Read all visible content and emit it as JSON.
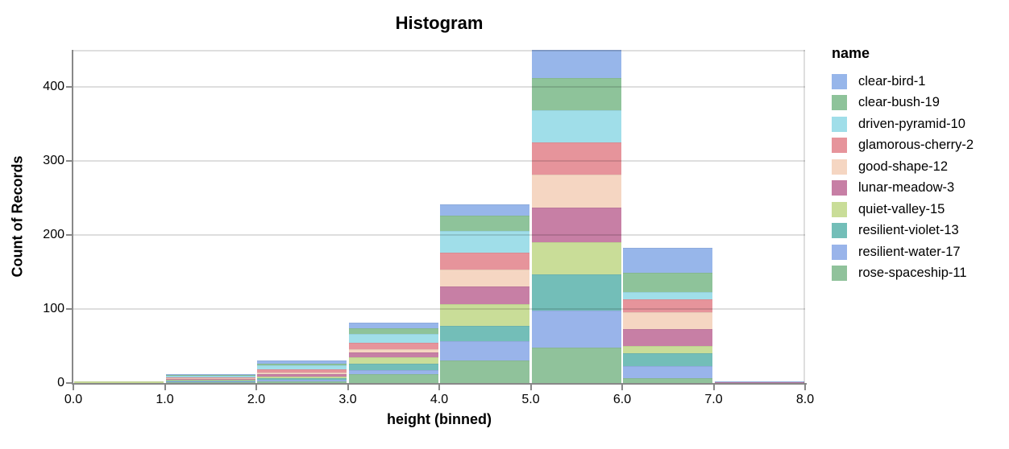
{
  "chart_data": {
    "type": "bar",
    "subtype": "stacked-histogram",
    "title": "Histogram",
    "xlabel": "height (binned)",
    "ylabel": "Count of Records",
    "legend_title": "name",
    "legend_position": "right",
    "grid": true,
    "xlim": [
      0,
      8
    ],
    "ylim": [
      0,
      450
    ],
    "bin_edges": [
      0,
      1,
      2,
      3,
      4,
      5,
      6,
      7,
      8
    ],
    "x_tick_labels": [
      "0.0",
      "1.0",
      "2.0",
      "3.0",
      "4.0",
      "5.0",
      "6.0",
      "7.0",
      "8.0"
    ],
    "y_ticks": [
      {
        "value": 0,
        "label": "0"
      },
      {
        "value": 100,
        "label": "100"
      },
      {
        "value": 200,
        "label": "200"
      },
      {
        "value": 300,
        "label": "300"
      },
      {
        "value": 400,
        "label": "400"
      }
    ],
    "bin_totals": [
      2,
      12,
      30,
      82,
      241,
      450,
      183,
      2
    ],
    "stack_note": "series listed in legend order; stacked bottom-to-top in reverse legend order (rose-spaceship-11 at bottom, clear-bird-1 on top)",
    "series": [
      {
        "name": "clear-bird-1",
        "color": "#97b6ea",
        "values": [
          0,
          1,
          4,
          8,
          15,
          38,
          34,
          1
        ]
      },
      {
        "name": "clear-bush-19",
        "color": "#8ec39a",
        "values": [
          0,
          1,
          2,
          8,
          21,
          43,
          26,
          0
        ]
      },
      {
        "name": "driven-pyramid-10",
        "color": "#a0dee9",
        "values": [
          0,
          2,
          6,
          12,
          29,
          44,
          10,
          0
        ]
      },
      {
        "name": "glamorous-cherry-2",
        "color": "#e6949b",
        "values": [
          0,
          2,
          4,
          8,
          23,
          44,
          17,
          0
        ]
      },
      {
        "name": "good-shape-12",
        "color": "#f5d6c2",
        "values": [
          0,
          1,
          2,
          5,
          23,
          44,
          23,
          0
        ]
      },
      {
        "name": "lunar-meadow-3",
        "color": "#c77fa5",
        "values": [
          0,
          1,
          3,
          6,
          23,
          47,
          23,
          1
        ]
      },
      {
        "name": "quiet-valley-15",
        "color": "#c9dd98",
        "values": [
          2,
          1,
          2,
          9,
          30,
          43,
          10,
          0
        ]
      },
      {
        "name": "resilient-violet-13",
        "color": "#73beb8",
        "values": [
          0,
          1,
          3,
          9,
          21,
          49,
          17,
          0
        ]
      },
      {
        "name": "resilient-water-17",
        "color": "#99b4ea",
        "values": [
          0,
          1,
          2,
          5,
          26,
          50,
          16,
          0
        ]
      },
      {
        "name": "rose-spaceship-11",
        "color": "#90c29b",
        "values": [
          0,
          1,
          2,
          12,
          30,
          48,
          7,
          0
        ]
      }
    ],
    "style_colors": {
      "axis_domain": "#888888",
      "gridline": "#dddddd",
      "text": "#000000",
      "background": "#ffffff"
    }
  }
}
